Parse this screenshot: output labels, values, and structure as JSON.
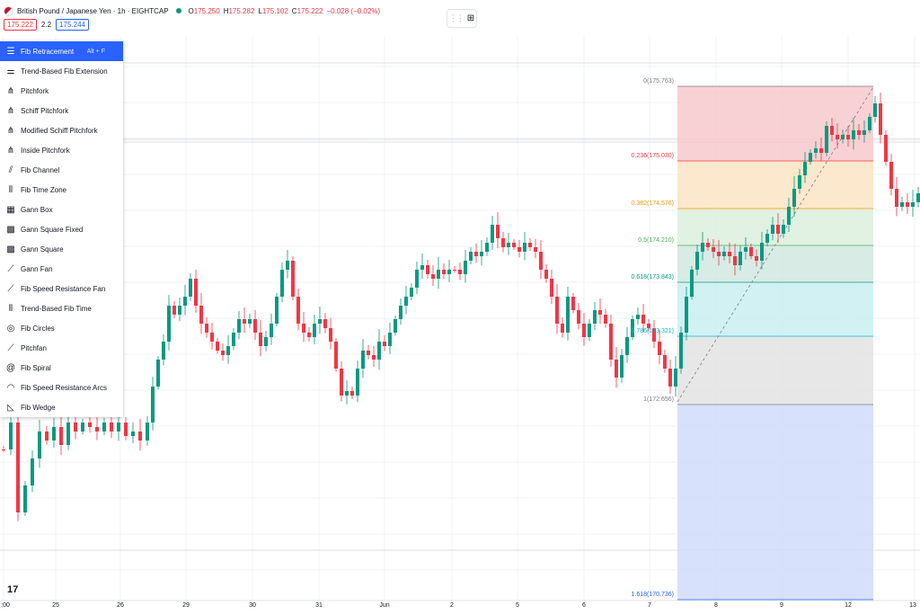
{
  "header": {
    "symbol_title": "British Pound / Japanese Yen · 1h · EIGHTCAP",
    "ohlc": [
      {
        "key": "O",
        "value": "175.250"
      },
      {
        "key": "H",
        "value": "175.282"
      },
      {
        "key": "L",
        "value": "175.102"
      },
      {
        "key": "C",
        "value": "175.222"
      }
    ],
    "change": "−0.028 (−0.02%)",
    "sell_price": "175.222",
    "spread": "2.2",
    "buy_price": "175.244",
    "status_color": "#089981"
  },
  "toolbar": {
    "grip_icon": "drag-handle-icon",
    "layout_icon": "object-tree-icon"
  },
  "menu": {
    "items": [
      {
        "label": "Fib Retracement",
        "icon": "fib-retracement-icon",
        "hotkey": "Alt + F",
        "active": true
      },
      {
        "label": "Trend-Based Fib Extension",
        "icon": "fib-extension-icon"
      },
      {
        "label": "Pitchfork",
        "icon": "pitchfork-icon"
      },
      {
        "label": "Schiff Pitchfork",
        "icon": "schiff-pitchfork-icon"
      },
      {
        "label": "Modified Schiff Pitchfork",
        "icon": "modified-schiff-pitchfork-icon"
      },
      {
        "label": "Inside Pitchfork",
        "icon": "inside-pitchfork-icon"
      },
      {
        "label": "Fib Channel",
        "icon": "fib-channel-icon"
      },
      {
        "label": "Fib Time Zone",
        "icon": "fib-time-zone-icon"
      },
      {
        "label": "Gann Box",
        "icon": "gann-box-icon"
      },
      {
        "label": "Gann Square Fixed",
        "icon": "gann-square-fixed-icon"
      },
      {
        "label": "Gann Square",
        "icon": "gann-square-icon"
      },
      {
        "label": "Gann Fan",
        "icon": "gann-fan-icon"
      },
      {
        "label": "Fib Speed Resistance Fan",
        "icon": "fib-speed-fan-icon"
      },
      {
        "label": "Trend-Based Fib Time",
        "icon": "fib-time-icon"
      },
      {
        "label": "Fib Circles",
        "icon": "fib-circles-icon"
      },
      {
        "label": "Pitchfan",
        "icon": "pitchfan-icon"
      },
      {
        "label": "Fib Spiral",
        "icon": "fib-spiral-icon"
      },
      {
        "label": "Fib Speed Resistance Arcs",
        "icon": "fib-arcs-icon"
      },
      {
        "label": "Fib Wedge",
        "icon": "fib-wedge-icon"
      }
    ]
  },
  "fib": {
    "levels": [
      {
        "label": "0(175.763)",
        "color": "#787b86",
        "fill": "#f7c9cc"
      },
      {
        "label": "0.236(175.030)",
        "color": "#f23645",
        "fill": "#fbe4c4"
      },
      {
        "label": "0.382(174.576)",
        "color": "#ff9800",
        "fill": "#dceedd"
      },
      {
        "label": "0.5(174.210)",
        "color": "#4caf50",
        "fill": "#d1e8e1"
      },
      {
        "label": "0.618(173.843)",
        "color": "#089981",
        "fill": "#c9eef1"
      },
      {
        "label": "0.786(173.321)",
        "color": "#00bcd4",
        "fill": "#e3e3e3"
      },
      {
        "label": "1(172.656)",
        "color": "#787b86",
        "fill": "#d0dcfb"
      },
      {
        "label": "1.618(170.736)",
        "color": "#2962ff",
        "fill": ""
      }
    ]
  },
  "xaxis": {
    "labels": [
      ":00",
      "25",
      "26",
      "29",
      "30",
      "31",
      "Jun",
      "2",
      "5",
      "6",
      "7",
      "8",
      "9",
      "12",
      "13"
    ]
  },
  "logo_text": "17",
  "colors": {
    "up": "#089981",
    "down": "#f23645",
    "accent": "#2962ff"
  }
}
